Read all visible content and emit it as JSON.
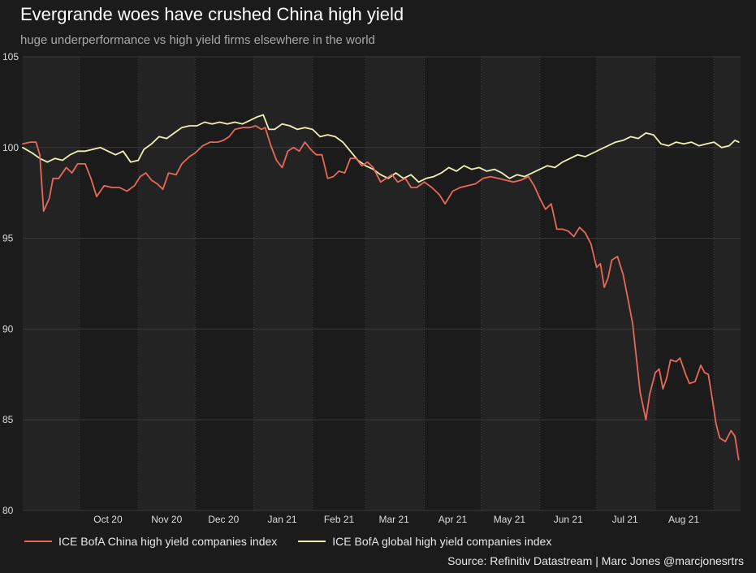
{
  "title": "Evergrande woes have crushed China high yield",
  "subtitle": "huge underperformance vs high yield firms elsewhere in the world",
  "source": "Source: Refinitiv Datastream | Marc Jones @marcjonesrtrs",
  "colors": {
    "background": "#1b1b1b",
    "band": "#232323",
    "grid": "#3a3a3a",
    "china": "#e8685a",
    "global": "#f0f0b4"
  },
  "chart_data": {
    "type": "line",
    "grid": true,
    "legend_position": "bottom",
    "ylim": [
      80,
      105
    ],
    "yticks": [
      80,
      85,
      90,
      95,
      100,
      105
    ],
    "xlim": [
      "2020-09-01",
      "2021-09-15"
    ],
    "x_ticks": [
      {
        "label": "Oct 20",
        "date": "2020-10-16"
      },
      {
        "label": "Nov 20",
        "date": "2020-11-16"
      },
      {
        "label": "Dec 20",
        "date": "2020-12-16"
      },
      {
        "label": "Jan 21",
        "date": "2021-01-16"
      },
      {
        "label": "Feb 21",
        "date": "2021-02-15"
      },
      {
        "label": "Mar 21",
        "date": "2021-03-16"
      },
      {
        "label": "Apr 21",
        "date": "2021-04-16"
      },
      {
        "label": "May 21",
        "date": "2021-05-16"
      },
      {
        "label": "Jun 21",
        "date": "2021-06-16"
      },
      {
        "label": "Jul 21",
        "date": "2021-07-16"
      },
      {
        "label": "Aug 21",
        "date": "2021-08-16"
      }
    ],
    "series": [
      {
        "name": "ICE BofA China high yield companies index",
        "color": "#e8685a",
        "points": [
          [
            "2020-09-01",
            100.2
          ],
          [
            "2020-09-05",
            100.3
          ],
          [
            "2020-09-08",
            100.3
          ],
          [
            "2020-09-10",
            99.6
          ],
          [
            "2020-09-12",
            96.5
          ],
          [
            "2020-09-15",
            97.2
          ],
          [
            "2020-09-17",
            98.3
          ],
          [
            "2020-09-20",
            98.3
          ],
          [
            "2020-09-24",
            98.9
          ],
          [
            "2020-09-27",
            98.6
          ],
          [
            "2020-09-30",
            99.1
          ],
          [
            "2020-10-04",
            99.1
          ],
          [
            "2020-10-07",
            98.3
          ],
          [
            "2020-10-10",
            97.3
          ],
          [
            "2020-10-14",
            97.9
          ],
          [
            "2020-10-18",
            97.8
          ],
          [
            "2020-10-22",
            97.8
          ],
          [
            "2020-10-26",
            97.6
          ],
          [
            "2020-10-30",
            97.9
          ],
          [
            "2020-11-02",
            98.4
          ],
          [
            "2020-11-05",
            98.6
          ],
          [
            "2020-11-08",
            98.2
          ],
          [
            "2020-11-11",
            98.0
          ],
          [
            "2020-11-14",
            97.7
          ],
          [
            "2020-11-17",
            98.6
          ],
          [
            "2020-11-21",
            98.5
          ],
          [
            "2020-11-24",
            99.1
          ],
          [
            "2020-11-28",
            99.5
          ],
          [
            "2020-12-01",
            99.7
          ],
          [
            "2020-12-05",
            100.1
          ],
          [
            "2020-12-09",
            100.3
          ],
          [
            "2020-12-13",
            100.3
          ],
          [
            "2020-12-16",
            100.4
          ],
          [
            "2020-12-19",
            100.6
          ],
          [
            "2020-12-22",
            101.0
          ],
          [
            "2020-12-26",
            101.1
          ],
          [
            "2020-12-30",
            101.1
          ],
          [
            "2021-01-02",
            101.2
          ],
          [
            "2021-01-05",
            101.0
          ],
          [
            "2021-01-07",
            101.1
          ],
          [
            "2021-01-10",
            100.1
          ],
          [
            "2021-01-13",
            99.3
          ],
          [
            "2021-01-16",
            98.9
          ],
          [
            "2021-01-19",
            99.8
          ],
          [
            "2021-01-22",
            100.0
          ],
          [
            "2021-01-25",
            99.8
          ],
          [
            "2021-01-28",
            100.3
          ],
          [
            "2021-01-31",
            99.9
          ],
          [
            "2021-02-03",
            99.6
          ],
          [
            "2021-02-06",
            99.6
          ],
          [
            "2021-02-09",
            98.3
          ],
          [
            "2021-02-12",
            98.4
          ],
          [
            "2021-02-15",
            98.7
          ],
          [
            "2021-02-18",
            98.6
          ],
          [
            "2021-02-21",
            99.4
          ],
          [
            "2021-02-24",
            99.4
          ],
          [
            "2021-02-27",
            99.0
          ],
          [
            "2021-03-02",
            99.2
          ],
          [
            "2021-03-05",
            98.9
          ],
          [
            "2021-03-09",
            98.1
          ],
          [
            "2021-03-12",
            98.3
          ],
          [
            "2021-03-15",
            98.5
          ],
          [
            "2021-03-18",
            98.1
          ],
          [
            "2021-03-22",
            98.3
          ],
          [
            "2021-03-25",
            97.8
          ],
          [
            "2021-03-28",
            97.8
          ],
          [
            "2021-04-01",
            98.1
          ],
          [
            "2021-04-05",
            97.8
          ],
          [
            "2021-04-09",
            97.4
          ],
          [
            "2021-04-12",
            96.9
          ],
          [
            "2021-04-16",
            97.6
          ],
          [
            "2021-04-20",
            97.8
          ],
          [
            "2021-04-24",
            97.9
          ],
          [
            "2021-04-28",
            98.0
          ],
          [
            "2021-05-02",
            98.3
          ],
          [
            "2021-05-06",
            98.4
          ],
          [
            "2021-05-10",
            98.3
          ],
          [
            "2021-05-14",
            98.2
          ],
          [
            "2021-05-18",
            98.1
          ],
          [
            "2021-05-22",
            98.2
          ],
          [
            "2021-05-26",
            98.4
          ],
          [
            "2021-05-29",
            97.9
          ],
          [
            "2021-06-01",
            97.2
          ],
          [
            "2021-06-04",
            96.6
          ],
          [
            "2021-06-07",
            96.9
          ],
          [
            "2021-06-10",
            95.5
          ],
          [
            "2021-06-13",
            95.5
          ],
          [
            "2021-06-16",
            95.4
          ],
          [
            "2021-06-19",
            95.1
          ],
          [
            "2021-06-22",
            95.6
          ],
          [
            "2021-06-25",
            95.3
          ],
          [
            "2021-06-28",
            94.7
          ],
          [
            "2021-07-01",
            93.4
          ],
          [
            "2021-07-03",
            93.6
          ],
          [
            "2021-07-05",
            92.3
          ],
          [
            "2021-07-07",
            92.8
          ],
          [
            "2021-07-09",
            93.8
          ],
          [
            "2021-07-12",
            94.0
          ],
          [
            "2021-07-15",
            93.0
          ],
          [
            "2021-07-18",
            91.4
          ],
          [
            "2021-07-20",
            90.3
          ],
          [
            "2021-07-22",
            88.4
          ],
          [
            "2021-07-24",
            86.5
          ],
          [
            "2021-07-27",
            85.0
          ],
          [
            "2021-07-29",
            86.4
          ],
          [
            "2021-08-01",
            87.6
          ],
          [
            "2021-08-03",
            87.8
          ],
          [
            "2021-08-05",
            86.7
          ],
          [
            "2021-08-07",
            87.3
          ],
          [
            "2021-08-09",
            88.3
          ],
          [
            "2021-08-12",
            88.2
          ],
          [
            "2021-08-14",
            88.4
          ],
          [
            "2021-08-17",
            87.5
          ],
          [
            "2021-08-19",
            87.0
          ],
          [
            "2021-08-22",
            87.1
          ],
          [
            "2021-08-25",
            88.0
          ],
          [
            "2021-08-27",
            87.6
          ],
          [
            "2021-08-29",
            87.5
          ],
          [
            "2021-08-31",
            86.2
          ],
          [
            "2021-09-02",
            84.8
          ],
          [
            "2021-09-04",
            84.0
          ],
          [
            "2021-09-07",
            83.8
          ],
          [
            "2021-09-10",
            84.4
          ],
          [
            "2021-09-12",
            84.1
          ],
          [
            "2021-09-14",
            82.8
          ]
        ]
      },
      {
        "name": "ICE BofA global high yield companies index",
        "color": "#f0f0b4",
        "points": [
          [
            "2020-09-01",
            100.0
          ],
          [
            "2020-09-06",
            99.7
          ],
          [
            "2020-09-10",
            99.4
          ],
          [
            "2020-09-14",
            99.2
          ],
          [
            "2020-09-18",
            99.4
          ],
          [
            "2020-09-22",
            99.3
          ],
          [
            "2020-09-26",
            99.6
          ],
          [
            "2020-09-30",
            99.8
          ],
          [
            "2020-10-04",
            99.8
          ],
          [
            "2020-10-08",
            99.9
          ],
          [
            "2020-10-12",
            100.0
          ],
          [
            "2020-10-16",
            99.8
          ],
          [
            "2020-10-20",
            99.6
          ],
          [
            "2020-10-24",
            99.8
          ],
          [
            "2020-10-28",
            99.2
          ],
          [
            "2020-11-01",
            99.3
          ],
          [
            "2020-11-04",
            99.9
          ],
          [
            "2020-11-08",
            100.2
          ],
          [
            "2020-11-12",
            100.6
          ],
          [
            "2020-11-16",
            100.5
          ],
          [
            "2020-11-20",
            100.8
          ],
          [
            "2020-11-24",
            101.1
          ],
          [
            "2020-11-28",
            101.2
          ],
          [
            "2020-12-02",
            101.2
          ],
          [
            "2020-12-06",
            101.4
          ],
          [
            "2020-12-10",
            101.3
          ],
          [
            "2020-12-14",
            101.4
          ],
          [
            "2020-12-18",
            101.3
          ],
          [
            "2020-12-22",
            101.4
          ],
          [
            "2020-12-26",
            101.3
          ],
          [
            "2020-12-30",
            101.5
          ],
          [
            "2021-01-03",
            101.7
          ],
          [
            "2021-01-06",
            101.8
          ],
          [
            "2021-01-09",
            101.0
          ],
          [
            "2021-01-12",
            101.0
          ],
          [
            "2021-01-16",
            101.3
          ],
          [
            "2021-01-20",
            101.2
          ],
          [
            "2021-01-24",
            101.0
          ],
          [
            "2021-01-28",
            101.1
          ],
          [
            "2021-02-01",
            101.0
          ],
          [
            "2021-02-05",
            100.6
          ],
          [
            "2021-02-09",
            100.7
          ],
          [
            "2021-02-13",
            100.6
          ],
          [
            "2021-02-17",
            100.3
          ],
          [
            "2021-02-21",
            99.8
          ],
          [
            "2021-02-25",
            99.3
          ],
          [
            "2021-03-01",
            99.0
          ],
          [
            "2021-03-05",
            98.8
          ],
          [
            "2021-03-09",
            98.5
          ],
          [
            "2021-03-13",
            98.3
          ],
          [
            "2021-03-17",
            98.6
          ],
          [
            "2021-03-21",
            98.3
          ],
          [
            "2021-03-25",
            98.5
          ],
          [
            "2021-03-29",
            98.1
          ],
          [
            "2021-04-02",
            98.3
          ],
          [
            "2021-04-06",
            98.4
          ],
          [
            "2021-04-10",
            98.6
          ],
          [
            "2021-04-14",
            98.9
          ],
          [
            "2021-04-18",
            98.7
          ],
          [
            "2021-04-22",
            99.0
          ],
          [
            "2021-04-26",
            98.8
          ],
          [
            "2021-04-30",
            98.9
          ],
          [
            "2021-05-04",
            98.7
          ],
          [
            "2021-05-08",
            98.8
          ],
          [
            "2021-05-12",
            98.6
          ],
          [
            "2021-05-16",
            98.3
          ],
          [
            "2021-05-20",
            98.5
          ],
          [
            "2021-05-24",
            98.4
          ],
          [
            "2021-05-28",
            98.6
          ],
          [
            "2021-06-01",
            98.8
          ],
          [
            "2021-06-05",
            99.0
          ],
          [
            "2021-06-09",
            98.9
          ],
          [
            "2021-06-13",
            99.2
          ],
          [
            "2021-06-17",
            99.4
          ],
          [
            "2021-06-21",
            99.6
          ],
          [
            "2021-06-25",
            99.5
          ],
          [
            "2021-06-29",
            99.7
          ],
          [
            "2021-07-03",
            99.9
          ],
          [
            "2021-07-07",
            100.1
          ],
          [
            "2021-07-11",
            100.3
          ],
          [
            "2021-07-15",
            100.4
          ],
          [
            "2021-07-19",
            100.6
          ],
          [
            "2021-07-23",
            100.5
          ],
          [
            "2021-07-27",
            100.8
          ],
          [
            "2021-07-31",
            100.7
          ],
          [
            "2021-08-04",
            100.2
          ],
          [
            "2021-08-08",
            100.1
          ],
          [
            "2021-08-12",
            100.3
          ],
          [
            "2021-08-16",
            100.2
          ],
          [
            "2021-08-20",
            100.3
          ],
          [
            "2021-08-24",
            100.1
          ],
          [
            "2021-08-28",
            100.2
          ],
          [
            "2021-09-01",
            100.3
          ],
          [
            "2021-09-05",
            100.0
          ],
          [
            "2021-09-09",
            100.1
          ],
          [
            "2021-09-12",
            100.4
          ],
          [
            "2021-09-14",
            100.3
          ]
        ]
      }
    ]
  }
}
